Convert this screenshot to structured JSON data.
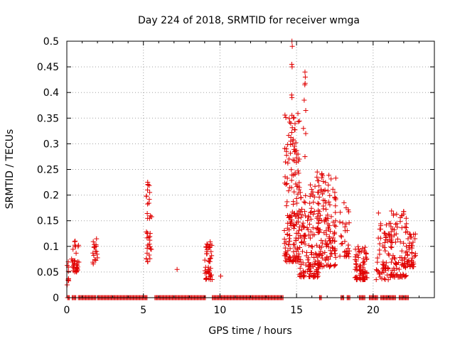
{
  "chart_data": {
    "type": "scatter",
    "title": "Day 224 of 2018, SRMTID for receiver wmga",
    "xlabel": "GPS time / hours",
    "ylabel": "SRMTID / TECUs",
    "xlim": [
      0,
      24
    ],
    "ylim": [
      0,
      0.5
    ],
    "xticks": [
      0,
      5,
      10,
      15,
      20
    ],
    "yticks": [
      0,
      0.05,
      0.1,
      0.15,
      0.2,
      0.25,
      0.3,
      0.35,
      0.4,
      0.45,
      0.5
    ],
    "ytick_labels": [
      "0",
      "0.05",
      "0.1",
      "0.15",
      "0.2",
      "0.25",
      "0.3",
      "0.35",
      "0.4",
      "0.45",
      "0.5"
    ],
    "grid": true,
    "marker": "+",
    "series_color": "#e00000",
    "zero_segments": [
      [
        0.05,
        0.2
      ],
      [
        0.35,
        0.6
      ],
      [
        0.75,
        1.9
      ],
      [
        2.0,
        5.25
      ],
      [
        5.75,
        9.1
      ],
      [
        9.5,
        14.15
      ],
      [
        16.5,
        16.65
      ],
      [
        17.9,
        18.1
      ],
      [
        18.3,
        18.5
      ],
      [
        19.1,
        19.5
      ],
      [
        19.75,
        20.3
      ],
      [
        20.5,
        21.5
      ],
      [
        21.7,
        22.3
      ]
    ],
    "clusters": [
      {
        "x": [
          0.0,
          0.15
        ],
        "y": [
          0.03,
          0.07
        ],
        "n": 8
      },
      {
        "x": [
          0.3,
          0.8
        ],
        "y": [
          0.05,
          0.115
        ],
        "n": 34
      },
      {
        "x": [
          1.7,
          2.0
        ],
        "y": [
          0.06,
          0.115
        ],
        "n": 18
      },
      {
        "x": [
          5.15,
          5.55
        ],
        "y": [
          0.07,
          0.225
        ],
        "n": 34
      },
      {
        "x": [
          9.0,
          9.5
        ],
        "y": [
          0.035,
          0.11
        ],
        "n": 45
      },
      {
        "x": [
          14.2,
          15.2
        ],
        "y": [
          0.07,
          0.36
        ],
        "n": 170
      },
      {
        "x": [
          15.2,
          16.5
        ],
        "y": [
          0.04,
          0.23
        ],
        "n": 150
      },
      {
        "x": [
          16.4,
          17.6
        ],
        "y": [
          0.06,
          0.25
        ],
        "n": 130
      },
      {
        "x": [
          17.8,
          18.5
        ],
        "y": [
          0.08,
          0.18
        ],
        "n": 30
      },
      {
        "x": [
          18.8,
          19.6
        ],
        "y": [
          0.035,
          0.1
        ],
        "n": 80
      },
      {
        "x": [
          20.2,
          21.0
        ],
        "y": [
          0.035,
          0.16
        ],
        "n": 55
      },
      {
        "x": [
          21.0,
          22.2
        ],
        "y": [
          0.04,
          0.17
        ],
        "n": 100
      },
      {
        "x": [
          22.2,
          22.8
        ],
        "y": [
          0.06,
          0.13
        ],
        "n": 45
      }
    ],
    "points": [
      {
        "x": 14.7,
        "y": 0.5
      },
      {
        "x": 14.72,
        "y": 0.49
      },
      {
        "x": 14.69,
        "y": 0.455
      },
      {
        "x": 14.71,
        "y": 0.45
      },
      {
        "x": 14.68,
        "y": 0.395
      },
      {
        "x": 14.7,
        "y": 0.39
      },
      {
        "x": 15.55,
        "y": 0.44
      },
      {
        "x": 15.57,
        "y": 0.43
      },
      {
        "x": 15.54,
        "y": 0.415
      },
      {
        "x": 15.56,
        "y": 0.418
      },
      {
        "x": 15.5,
        "y": 0.385
      },
      {
        "x": 15.6,
        "y": 0.365
      },
      {
        "x": 15.45,
        "y": 0.33
      },
      {
        "x": 15.6,
        "y": 0.32
      },
      {
        "x": 15.55,
        "y": 0.275
      },
      {
        "x": 14.75,
        "y": 0.3
      },
      {
        "x": 14.62,
        "y": 0.34
      },
      {
        "x": 14.8,
        "y": 0.35
      },
      {
        "x": 16.35,
        "y": 0.245
      },
      {
        "x": 16.38,
        "y": 0.228
      },
      {
        "x": 16.33,
        "y": 0.235
      },
      {
        "x": 5.28,
        "y": 0.225
      },
      {
        "x": 5.3,
        "y": 0.22
      },
      {
        "x": 5.27,
        "y": 0.21
      },
      {
        "x": 7.2,
        "y": 0.055
      },
      {
        "x": 10.05,
        "y": 0.042
      },
      {
        "x": 0.02,
        "y": 0.025
      },
      {
        "x": 18.1,
        "y": 0.185
      },
      {
        "x": 20.35,
        "y": 0.165
      },
      {
        "x": 22.0,
        "y": 0.168
      }
    ]
  }
}
